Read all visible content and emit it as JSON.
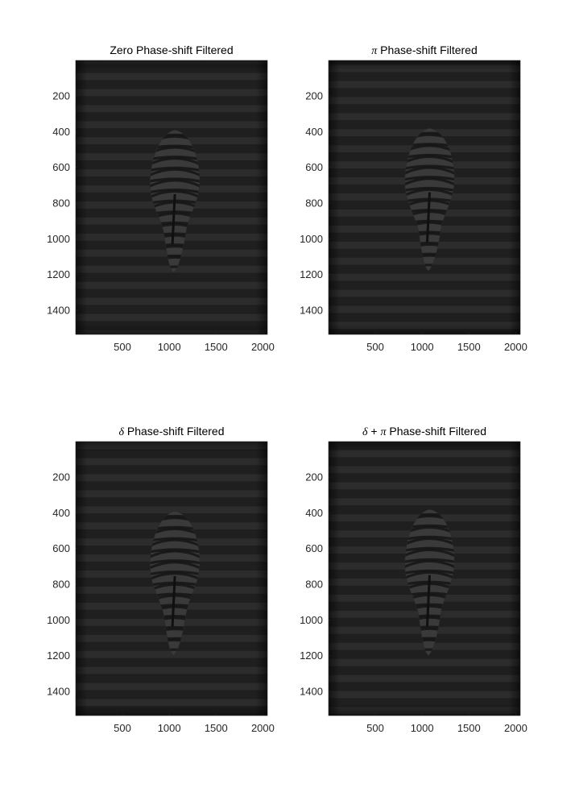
{
  "figure": {
    "background": "#ffffff",
    "colormap": "gray"
  },
  "chart_data": [
    {
      "type": "heatmap",
      "title_parts": [
        {
          "text": "Zero Phase-shift Filtered",
          "style": "text"
        }
      ],
      "xlabel": "",
      "ylabel": "",
      "xlim": [
        1,
        2048
      ],
      "ylim": [
        1,
        1536
      ],
      "y_reversed": true,
      "xticks": [
        500,
        1000,
        1500,
        2000
      ],
      "yticks": [
        200,
        400,
        600,
        800,
        1000,
        1200,
        1400
      ],
      "xtick_labels": [
        "500",
        "1000",
        "1500",
        "2000"
      ],
      "ytick_labels": [
        "200",
        "400",
        "600",
        "800",
        "1000",
        "1200",
        "1400"
      ],
      "content": "horizontal interference fringes with a central zebra-striped object",
      "fringe_period": 90,
      "fringe_phase": 0,
      "object": {
        "x_center": 1060,
        "top": 390,
        "bottom": 1190
      }
    },
    {
      "type": "heatmap",
      "title_parts": [
        {
          "text": "π",
          "style": "symbol"
        },
        {
          "text": " Phase-shift Filtered",
          "style": "text"
        }
      ],
      "xlabel": "",
      "ylabel": "",
      "xlim": [
        1,
        2048
      ],
      "ylim": [
        1,
        1536
      ],
      "y_reversed": true,
      "xticks": [
        500,
        1000,
        1500,
        2000
      ],
      "yticks": [
        200,
        400,
        600,
        800,
        1000,
        1200,
        1400
      ],
      "xtick_labels": [
        "500",
        "1000",
        "1500",
        "2000"
      ],
      "ytick_labels": [
        "200",
        "400",
        "600",
        "800",
        "1000",
        "1200",
        "1400"
      ],
      "content": "horizontal interference fringes with a central zebra-striped object",
      "fringe_period": 90,
      "fringe_phase": 0.5,
      "object": {
        "x_center": 1080,
        "top": 380,
        "bottom": 1180
      }
    },
    {
      "type": "heatmap",
      "title_parts": [
        {
          "text": "δ",
          "style": "symbol"
        },
        {
          "text": " Phase-shift Filtered",
          "style": "text"
        }
      ],
      "xlabel": "",
      "ylabel": "",
      "xlim": [
        1,
        2048
      ],
      "ylim": [
        1,
        1536
      ],
      "y_reversed": true,
      "xticks": [
        500,
        1000,
        1500,
        2000
      ],
      "yticks": [
        200,
        400,
        600,
        800,
        1000,
        1200,
        1400
      ],
      "xtick_labels": [
        "500",
        "1000",
        "1500",
        "2000"
      ],
      "ytick_labels": [
        "200",
        "400",
        "600",
        "800",
        "1000",
        "1200",
        "1400"
      ],
      "content": "horizontal interference fringes with a central zebra-striped object",
      "fringe_period": 90,
      "fringe_phase": 0.25,
      "object": {
        "x_center": 1060,
        "top": 390,
        "bottom": 1200
      }
    },
    {
      "type": "heatmap",
      "title_parts": [
        {
          "text": "δ",
          "style": "symbol"
        },
        {
          "text": " + ",
          "style": "text"
        },
        {
          "text": "π",
          "style": "symbol"
        },
        {
          "text": " Phase-shift Filtered",
          "style": "text"
        }
      ],
      "xlabel": "",
      "ylabel": "",
      "xlim": [
        1,
        2048
      ],
      "ylim": [
        1,
        1536
      ],
      "y_reversed": true,
      "xticks": [
        500,
        1000,
        1500,
        2000
      ],
      "yticks": [
        200,
        400,
        600,
        800,
        1000,
        1200,
        1400
      ],
      "xtick_labels": [
        "500",
        "1000",
        "1500",
        "2000"
      ],
      "ytick_labels": [
        "200",
        "400",
        "600",
        "800",
        "1000",
        "1200",
        "1400"
      ],
      "content": "horizontal interference fringes with a central zebra-striped object",
      "fringe_period": 90,
      "fringe_phase": 0.75,
      "object": {
        "x_center": 1080,
        "top": 380,
        "bottom": 1200
      }
    }
  ]
}
